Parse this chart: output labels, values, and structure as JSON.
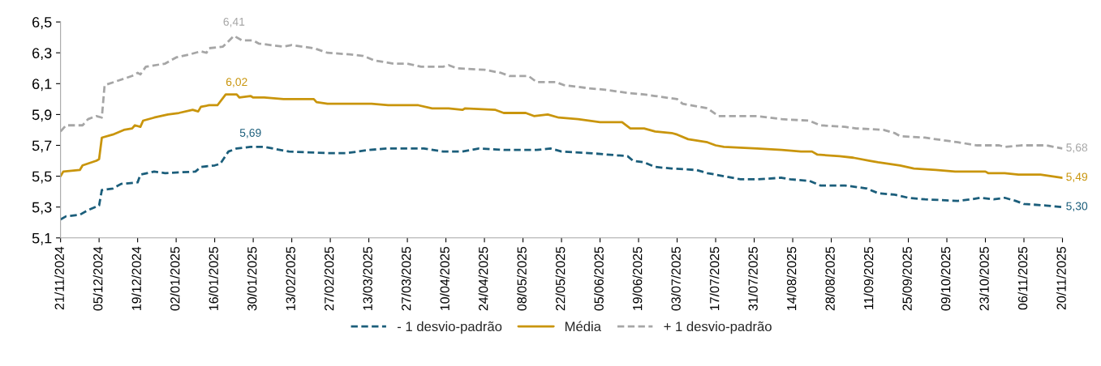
{
  "chart_data": {
    "type": "line",
    "ylim": [
      5.1,
      6.5
    ],
    "yticks": [
      {
        "value": 5.1,
        "label": "5,1"
      },
      {
        "value": 5.3,
        "label": "5,3"
      },
      {
        "value": 5.5,
        "label": "5,5"
      },
      {
        "value": 5.7,
        "label": "5,7"
      },
      {
        "value": 5.9,
        "label": "5,9"
      },
      {
        "value": 6.1,
        "label": "6,1"
      },
      {
        "value": 6.3,
        "label": "6,3"
      },
      {
        "value": 6.5,
        "label": "6,5"
      }
    ],
    "xlim": [
      "2024-11-21",
      "2025-11-20"
    ],
    "xticks": [
      {
        "value": "2024-11-21",
        "label": "21/11/2024"
      },
      {
        "value": "2024-12-05",
        "label": "05/12/2024"
      },
      {
        "value": "2024-12-19",
        "label": "19/12/2024"
      },
      {
        "value": "2025-01-02",
        "label": "02/01/2025"
      },
      {
        "value": "2025-01-16",
        "label": "16/01/2025"
      },
      {
        "value": "2025-01-30",
        "label": "30/01/2025"
      },
      {
        "value": "2025-02-13",
        "label": "13/02/2025"
      },
      {
        "value": "2025-02-27",
        "label": "27/02/2025"
      },
      {
        "value": "2025-03-13",
        "label": "13/03/2025"
      },
      {
        "value": "2025-03-27",
        "label": "27/03/2025"
      },
      {
        "value": "2025-04-10",
        "label": "10/04/2025"
      },
      {
        "value": "2025-04-24",
        "label": "24/04/2025"
      },
      {
        "value": "2025-05-08",
        "label": "08/05/2025"
      },
      {
        "value": "2025-05-22",
        "label": "22/05/2025"
      },
      {
        "value": "2025-06-05",
        "label": "05/06/2025"
      },
      {
        "value": "2025-06-19",
        "label": "19/06/2025"
      },
      {
        "value": "2025-07-03",
        "label": "03/07/2025"
      },
      {
        "value": "2025-07-17",
        "label": "17/07/2025"
      },
      {
        "value": "2025-07-31",
        "label": "31/07/2025"
      },
      {
        "value": "2025-08-14",
        "label": "14/08/2025"
      },
      {
        "value": "2025-08-28",
        "label": "28/08/2025"
      },
      {
        "value": "2025-09-11",
        "label": "11/09/2025"
      },
      {
        "value": "2025-09-25",
        "label": "25/09/2025"
      },
      {
        "value": "2025-10-09",
        "label": "09/10/2025"
      },
      {
        "value": "2025-10-23",
        "label": "23/10/2025"
      },
      {
        "value": "2025-11-06",
        "label": "06/11/2025"
      },
      {
        "value": "2025-11-20",
        "label": "20/11/2025"
      }
    ],
    "grid": false,
    "legend": "bottom",
    "marker": "none",
    "series": [
      {
        "name": "- 1 desvio-padrão",
        "color": "#1b5e7b",
        "line_style": "dashed",
        "x": [
          "2024-11-21",
          "2024-11-23",
          "2024-11-28",
          "2024-12-01",
          "2024-12-05",
          "2024-12-06",
          "2024-12-10",
          "2024-12-13",
          "2024-12-19",
          "2024-12-20",
          "2024-12-25",
          "2024-12-29",
          "2025-01-09",
          "2025-01-11",
          "2025-01-16",
          "2025-01-18",
          "2025-01-21",
          "2025-01-24",
          "2025-01-29",
          "2025-02-03",
          "2025-02-12",
          "2025-02-26",
          "2025-03-05",
          "2025-03-13",
          "2025-03-20",
          "2025-04-02",
          "2025-04-09",
          "2025-04-16",
          "2025-04-22",
          "2025-05-01",
          "2025-05-13",
          "2025-05-18",
          "2025-05-22",
          "2025-06-01",
          "2025-06-15",
          "2025-06-17",
          "2025-06-21",
          "2025-06-25",
          "2025-07-01",
          "2025-07-10",
          "2025-07-14",
          "2025-07-20",
          "2025-07-26",
          "2025-08-01",
          "2025-08-10",
          "2025-08-13",
          "2025-08-20",
          "2025-08-24",
          "2025-09-02",
          "2025-09-10",
          "2025-09-14",
          "2025-09-20",
          "2025-09-25",
          "2025-10-01",
          "2025-10-13",
          "2025-10-18",
          "2025-10-21",
          "2025-10-26",
          "2025-10-30",
          "2025-11-03",
          "2025-11-06",
          "2025-11-14",
          "2025-11-20"
        ],
        "values": [
          5.22,
          5.24,
          5.25,
          5.28,
          5.31,
          5.41,
          5.42,
          5.45,
          5.46,
          5.51,
          5.53,
          5.52,
          5.53,
          5.56,
          5.57,
          5.58,
          5.66,
          5.68,
          5.69,
          5.69,
          5.66,
          5.65,
          5.65,
          5.67,
          5.68,
          5.68,
          5.66,
          5.66,
          5.68,
          5.67,
          5.67,
          5.68,
          5.66,
          5.65,
          5.63,
          5.6,
          5.59,
          5.56,
          5.55,
          5.54,
          5.52,
          5.5,
          5.48,
          5.48,
          5.49,
          5.48,
          5.47,
          5.44,
          5.44,
          5.42,
          5.39,
          5.38,
          5.36,
          5.35,
          5.34,
          5.35,
          5.36,
          5.35,
          5.36,
          5.34,
          5.32,
          5.31,
          5.3
        ]
      },
      {
        "name": "Média",
        "color": "#c9950c",
        "line_style": "solid",
        "x": [
          "2024-11-21",
          "2024-11-22",
          "2024-11-28",
          "2024-11-29",
          "2024-12-04",
          "2024-12-05",
          "2024-12-06",
          "2024-12-10",
          "2024-12-14",
          "2024-12-17",
          "2024-12-18",
          "2024-12-20",
          "2024-12-21",
          "2024-12-25",
          "2024-12-30",
          "2025-01-03",
          "2025-01-08",
          "2025-01-10",
          "2025-01-11",
          "2025-01-14",
          "2025-01-17",
          "2025-01-20",
          "2025-01-24",
          "2025-01-25",
          "2025-01-29",
          "2025-01-30",
          "2025-02-03",
          "2025-02-10",
          "2025-02-15",
          "2025-02-21",
          "2025-02-22",
          "2025-02-26",
          "2025-03-14",
          "2025-03-20",
          "2025-03-31",
          "2025-04-05",
          "2025-04-11",
          "2025-04-16",
          "2025-04-17",
          "2025-04-28",
          "2025-05-01",
          "2025-05-09",
          "2025-05-12",
          "2025-05-17",
          "2025-05-21",
          "2025-05-28",
          "2025-06-05",
          "2025-06-13",
          "2025-06-16",
          "2025-06-21",
          "2025-06-25",
          "2025-07-01",
          "2025-07-03",
          "2025-07-07",
          "2025-07-14",
          "2025-07-17",
          "2025-07-20",
          "2025-08-01",
          "2025-08-10",
          "2025-08-17",
          "2025-08-21",
          "2025-08-23",
          "2025-08-31",
          "2025-09-05",
          "2025-09-11",
          "2025-09-14",
          "2025-09-22",
          "2025-09-27",
          "2025-10-05",
          "2025-10-12",
          "2025-10-23",
          "2025-10-24",
          "2025-10-30",
          "2025-11-04",
          "2025-11-12",
          "2025-11-20"
        ],
        "values": [
          5.5,
          5.53,
          5.54,
          5.57,
          5.6,
          5.61,
          5.75,
          5.77,
          5.8,
          5.81,
          5.83,
          5.82,
          5.86,
          5.88,
          5.9,
          5.91,
          5.93,
          5.92,
          5.95,
          5.96,
          5.96,
          6.03,
          6.03,
          6.01,
          6.02,
          6.01,
          6.01,
          6.0,
          6.0,
          6.0,
          5.98,
          5.97,
          5.97,
          5.96,
          5.96,
          5.94,
          5.94,
          5.93,
          5.94,
          5.93,
          5.91,
          5.91,
          5.89,
          5.9,
          5.88,
          5.87,
          5.85,
          5.85,
          5.81,
          5.81,
          5.79,
          5.78,
          5.77,
          5.74,
          5.72,
          5.7,
          5.69,
          5.68,
          5.67,
          5.66,
          5.66,
          5.64,
          5.63,
          5.62,
          5.6,
          5.59,
          5.57,
          5.55,
          5.54,
          5.53,
          5.53,
          5.52,
          5.52,
          5.51,
          5.51,
          5.49
        ]
      },
      {
        "name": "+ 1 desvio-padrão",
        "color": "#a6a6a6",
        "line_style": "dashed",
        "x": [
          "2024-11-21",
          "2024-11-23",
          "2024-11-29",
          "2024-12-01",
          "2024-12-04",
          "2024-12-06",
          "2024-12-07",
          "2024-12-12",
          "2024-12-17",
          "2024-12-19",
          "2024-12-20",
          "2024-12-22",
          "2024-12-29",
          "2025-01-02",
          "2025-01-07",
          "2025-01-11",
          "2025-01-13",
          "2025-01-14",
          "2025-01-19",
          "2025-01-23",
          "2025-01-26",
          "2025-01-30",
          "2025-02-01",
          "2025-02-10",
          "2025-02-13",
          "2025-02-21",
          "2025-02-26",
          "2025-03-06",
          "2025-03-11",
          "2025-03-15",
          "2025-03-22",
          "2025-03-27",
          "2025-04-01",
          "2025-04-09",
          "2025-04-11",
          "2025-04-14",
          "2025-04-24",
          "2025-04-30",
          "2025-05-03",
          "2025-05-10",
          "2025-05-13",
          "2025-05-20",
          "2025-05-23",
          "2025-06-01",
          "2025-06-07",
          "2025-06-15",
          "2025-06-21",
          "2025-06-25",
          "2025-07-03",
          "2025-07-05",
          "2025-07-14",
          "2025-07-18",
          "2025-08-01",
          "2025-08-10",
          "2025-08-20",
          "2025-08-24",
          "2025-09-02",
          "2025-09-06",
          "2025-09-16",
          "2025-09-20",
          "2025-09-22",
          "2025-10-01",
          "2025-10-13",
          "2025-10-20",
          "2025-10-28",
          "2025-10-30",
          "2025-11-05",
          "2025-11-14",
          "2025-11-20"
        ],
        "values": [
          5.79,
          5.83,
          5.83,
          5.87,
          5.89,
          5.88,
          6.09,
          6.12,
          6.15,
          6.17,
          6.16,
          6.21,
          6.23,
          6.27,
          6.29,
          6.31,
          6.3,
          6.33,
          6.34,
          6.41,
          6.38,
          6.38,
          6.36,
          6.34,
          6.35,
          6.33,
          6.3,
          6.29,
          6.28,
          6.25,
          6.23,
          6.23,
          6.21,
          6.21,
          6.22,
          6.2,
          6.19,
          6.17,
          6.15,
          6.15,
          6.11,
          6.11,
          6.09,
          6.07,
          6.06,
          6.04,
          6.03,
          6.02,
          6.0,
          5.97,
          5.94,
          5.89,
          5.89,
          5.87,
          5.86,
          5.83,
          5.82,
          5.81,
          5.8,
          5.78,
          5.76,
          5.75,
          5.72,
          5.7,
          5.7,
          5.69,
          5.7,
          5.7,
          5.68
        ]
      }
    ],
    "annotations": [
      {
        "text": "6,41",
        "x": "2025-01-23",
        "y": 6.41
      },
      {
        "text": "6,02",
        "x": "2025-01-24",
        "y": 6.02
      },
      {
        "text": "5,69",
        "x": "2025-01-29",
        "y": 5.69
      },
      {
        "text": "5,68",
        "x": "2025-11-20",
        "y": 5.68
      },
      {
        "text": "5,49",
        "x": "2025-11-20",
        "y": 5.49
      },
      {
        "text": "5,30",
        "x": "2025-11-20",
        "y": 5.3
      }
    ]
  }
}
